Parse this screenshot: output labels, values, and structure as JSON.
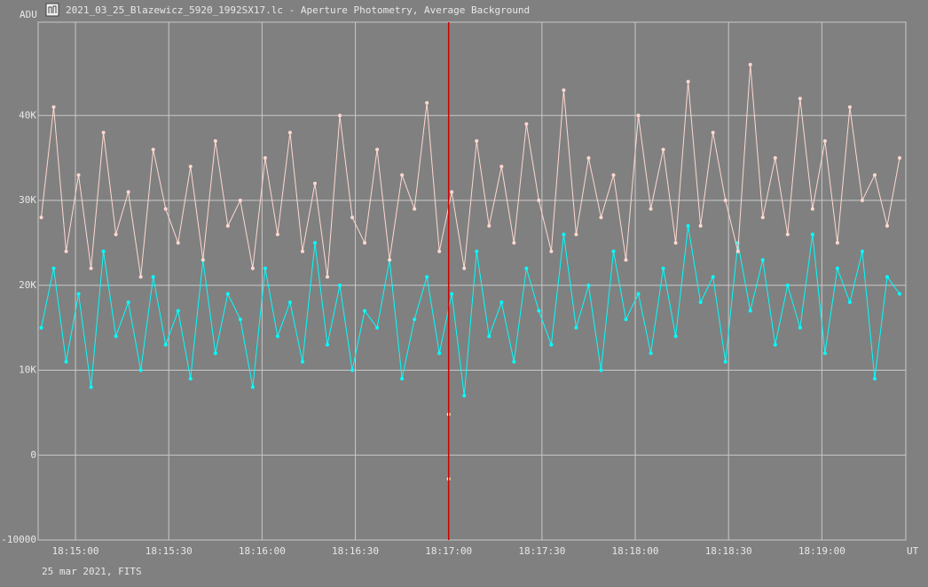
{
  "chart_data": {
    "type": "line",
    "title": "2021_03_25_Blazewicz_5920_1992SX17.lc - Aperture Photometry, Average Background",
    "y_label": "ADU",
    "x_label": "UT",
    "footnote": "25 mar 2021, FITS",
    "grid": true,
    "xlim": [
      65688,
      65967
    ],
    "xticks": [
      {
        "value": 65700,
        "label": "18:15:00"
      },
      {
        "value": 65730,
        "label": "18:15:30"
      },
      {
        "value": 65760,
        "label": "18:16:00"
      },
      {
        "value": 65790,
        "label": "18:16:30"
      },
      {
        "value": 65820,
        "label": "18:17:00"
      },
      {
        "value": 65850,
        "label": "18:17:30"
      },
      {
        "value": 65880,
        "label": "18:18:00"
      },
      {
        "value": 65910,
        "label": "18:18:30"
      },
      {
        "value": 65940,
        "label": "18:19:00"
      }
    ],
    "ylim": [
      -10000,
      51000
    ],
    "yticks": [
      -10000,
      0,
      {
        "value": 10000,
        "label": "10K"
      },
      {
        "value": 20000,
        "label": "20K"
      },
      {
        "value": 30000,
        "label": "30K"
      },
      {
        "value": 40000,
        "label": "40K"
      }
    ],
    "cursor_x": 65820,
    "cursor_color": "#d00000",
    "x": [
      65689,
      65693,
      65697,
      65701,
      65705,
      65709,
      65713,
      65717,
      65721,
      65725,
      65729,
      65733,
      65737,
      65741,
      65745,
      65749,
      65753,
      65757,
      65761,
      65765,
      65769,
      65773,
      65777,
      65781,
      65785,
      65789,
      65793,
      65797,
      65801,
      65805,
      65809,
      65813,
      65817,
      65821,
      65825,
      65829,
      65833,
      65837,
      65841,
      65845,
      65849,
      65853,
      65857,
      65861,
      65865,
      65869,
      65873,
      65877,
      65881,
      65885,
      65889,
      65893,
      65897,
      65901,
      65905,
      65909,
      65913,
      65917,
      65921,
      65925,
      65929,
      65933,
      65937,
      65941,
      65945,
      65949,
      65953,
      65957,
      65961,
      65965
    ],
    "series": [
      {
        "color": "#00ffff",
        "values": [
          15000,
          22000,
          11000,
          19000,
          8000,
          24000,
          14000,
          18000,
          10000,
          21000,
          13000,
          17000,
          9000,
          23000,
          12000,
          19000,
          16000,
          8000,
          22000,
          14000,
          18000,
          11000,
          25000,
          13000,
          20000,
          10000,
          17000,
          15000,
          23000,
          9000,
          16000,
          21000,
          12000,
          19000,
          7000,
          24000,
          14000,
          18000,
          11000,
          22000,
          17000,
          13000,
          26000,
          15000,
          20000,
          10000,
          24000,
          16000,
          19000,
          12000,
          22000,
          14000,
          27000,
          18000,
          21000,
          11000,
          25000,
          17000,
          23000,
          13000,
          20000,
          15000,
          26000,
          12000,
          22000,
          18000,
          24000,
          9000,
          21000,
          19000
        ]
      },
      {
        "color": "#ffd8d0",
        "values": [
          28000,
          41000,
          24000,
          33000,
          22000,
          38000,
          26000,
          31000,
          21000,
          36000,
          29000,
          25000,
          34000,
          23000,
          37000,
          27000,
          30000,
          22000,
          35000,
          26000,
          38000,
          24000,
          32000,
          21000,
          40000,
          28000,
          25000,
          36000,
          23000,
          33000,
          29000,
          41500,
          24000,
          31000,
          22000,
          37000,
          27000,
          34000,
          25000,
          39000,
          30000,
          24000,
          43000,
          26000,
          35000,
          28000,
          33000,
          23000,
          40000,
          29000,
          36000,
          25000,
          44000,
          27000,
          38000,
          30000,
          24000,
          46000,
          28000,
          35000,
          26000,
          42000,
          29000,
          37000,
          25000,
          41000,
          30000,
          33000,
          27000,
          35000
        ]
      },
      {
        "color": "#ffff90",
        "x": [
          65820,
          65820
        ],
        "values": [
          4800,
          -2800
        ]
      }
    ]
  }
}
